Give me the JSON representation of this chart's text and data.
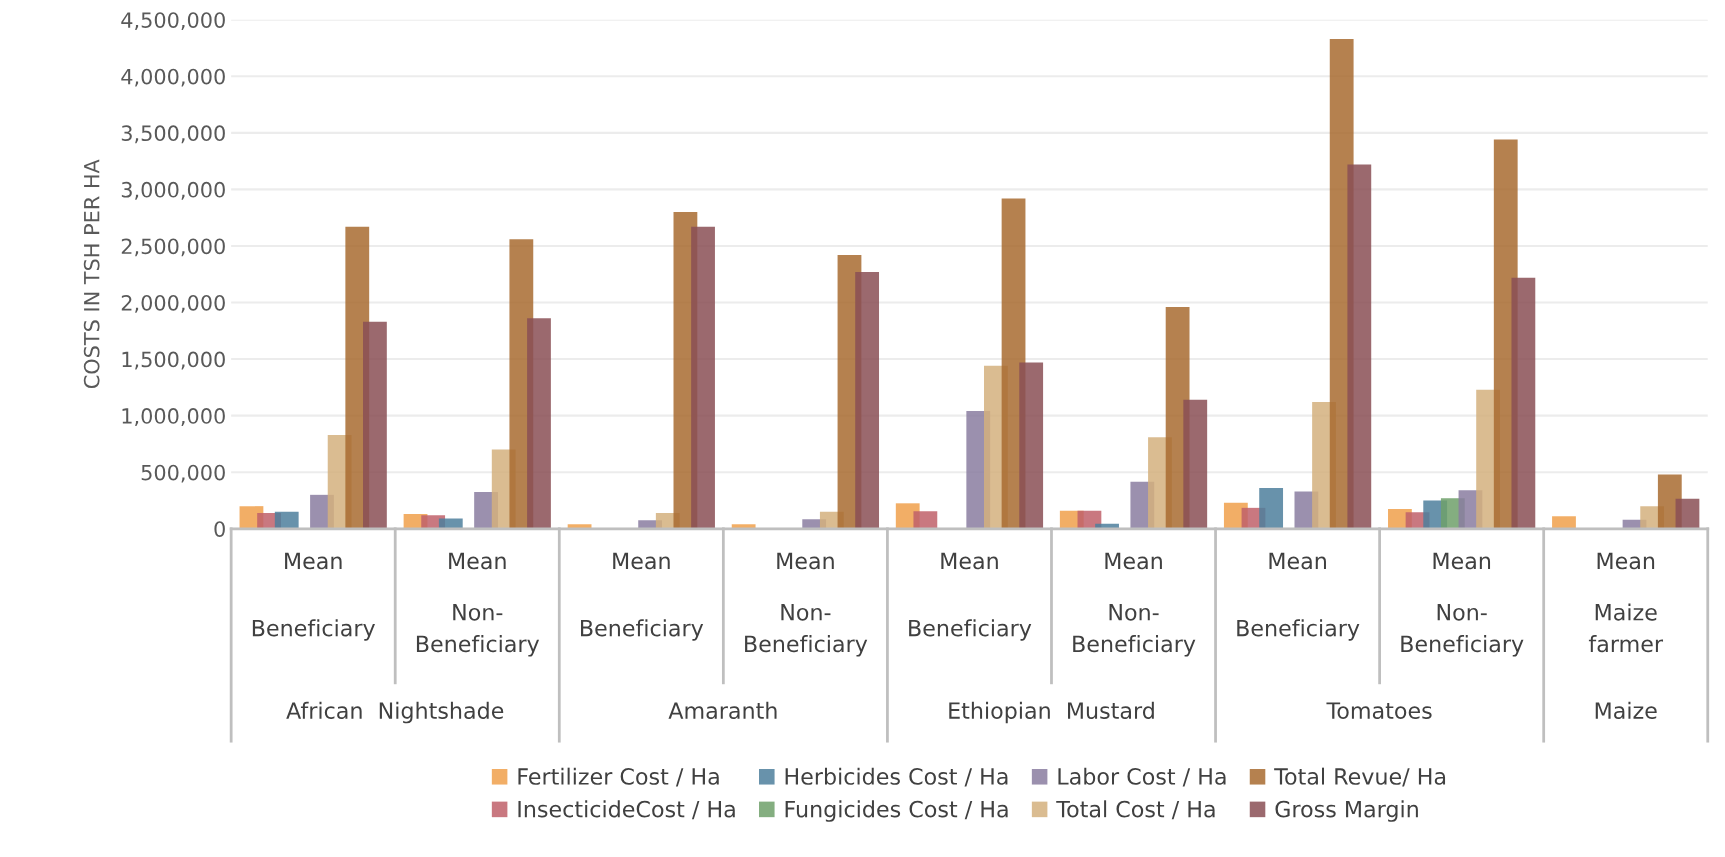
{
  "chart_data": {
    "type": "bar",
    "ylabel": "COSTS IN TSH PER HA",
    "categories": [
      "Mean\nBeneficiary",
      "Mean\nNon-\nBeneficiary",
      "Mean\nBeneficiary",
      "Mean\nNon-\nBeneficiary",
      "Mean\nBeneficiary",
      "Mean\nNon-\nBeneficiary",
      "Mean\nBeneficiary",
      "Mean\nNon-\nBeneficiary",
      "Mean\nMaize\nfarmer"
    ],
    "annotations": [
      "African  Nightshade",
      "Amaranth",
      "Ethiopian  Mustard",
      "Tomatoes",
      "Maize"
    ],
    "series": [
      {
        "name": "Fertilizer Cost / Ha",
        "color": "#f0a04b",
        "values": [
          200000,
          130000,
          40000,
          40000,
          225000,
          160000,
          230000,
          175000,
          110000
        ]
      },
      {
        "name": "InsecticideCost / Ha",
        "color": "#c0606a",
        "values": [
          140000,
          120000,
          null,
          null,
          155000,
          160000,
          185000,
          145000,
          null
        ]
      },
      {
        "name": "Herbicides Cost / Ha",
        "color": "#4e7f9c",
        "values": [
          150000,
          90000,
          null,
          null,
          null,
          45000,
          360000,
          250000,
          null
        ]
      },
      {
        "name": "Fungicides Cost / Ha",
        "color": "#6fa06a",
        "values": [
          null,
          null,
          null,
          null,
          null,
          null,
          null,
          270000,
          null
        ]
      },
      {
        "name": "Labor Cost / Ha",
        "color": "#8a7ca0",
        "values": [
          300000,
          325000,
          75000,
          85000,
          1040000,
          415000,
          330000,
          340000,
          80000
        ]
      },
      {
        "name": "Total Cost / Ha",
        "color": "#d4b07e",
        "values": [
          830000,
          700000,
          140000,
          150000,
          1440000,
          810000,
          1120000,
          1230000,
          200000
        ]
      },
      {
        "name": "Total Revue/ Ha",
        "color": "#a86b30",
        "values": [
          2670000,
          2560000,
          2800000,
          2420000,
          2920000,
          1960000,
          4330000,
          3440000,
          480000
        ]
      },
      {
        "name": "Gross Margin",
        "color": "#8a4f55",
        "values": [
          1830000,
          1860000,
          2670000,
          2270000,
          1470000,
          1140000,
          3220000,
          2220000,
          265000
        ]
      }
    ],
    "ylim": [
      0,
      4500000
    ],
    "yticks": [
      {
        "value": 0,
        "label": "0"
      },
      {
        "value": 500000,
        "label": "500,000"
      },
      {
        "value": 1000000,
        "label": "1,000,000"
      },
      {
        "value": 1500000,
        "label": "1,500,000"
      },
      {
        "value": 2000000,
        "label": "2,000,000"
      },
      {
        "value": 2500000,
        "label": "2,500,000"
      },
      {
        "value": 3000000,
        "label": "3,000,000"
      },
      {
        "value": 3500000,
        "label": "3,500,000"
      },
      {
        "value": 4000000,
        "label": "4,000,000"
      },
      {
        "value": 4500000,
        "label": "4,500,000"
      }
    ],
    "grid": "y",
    "legend": "bottom"
  }
}
